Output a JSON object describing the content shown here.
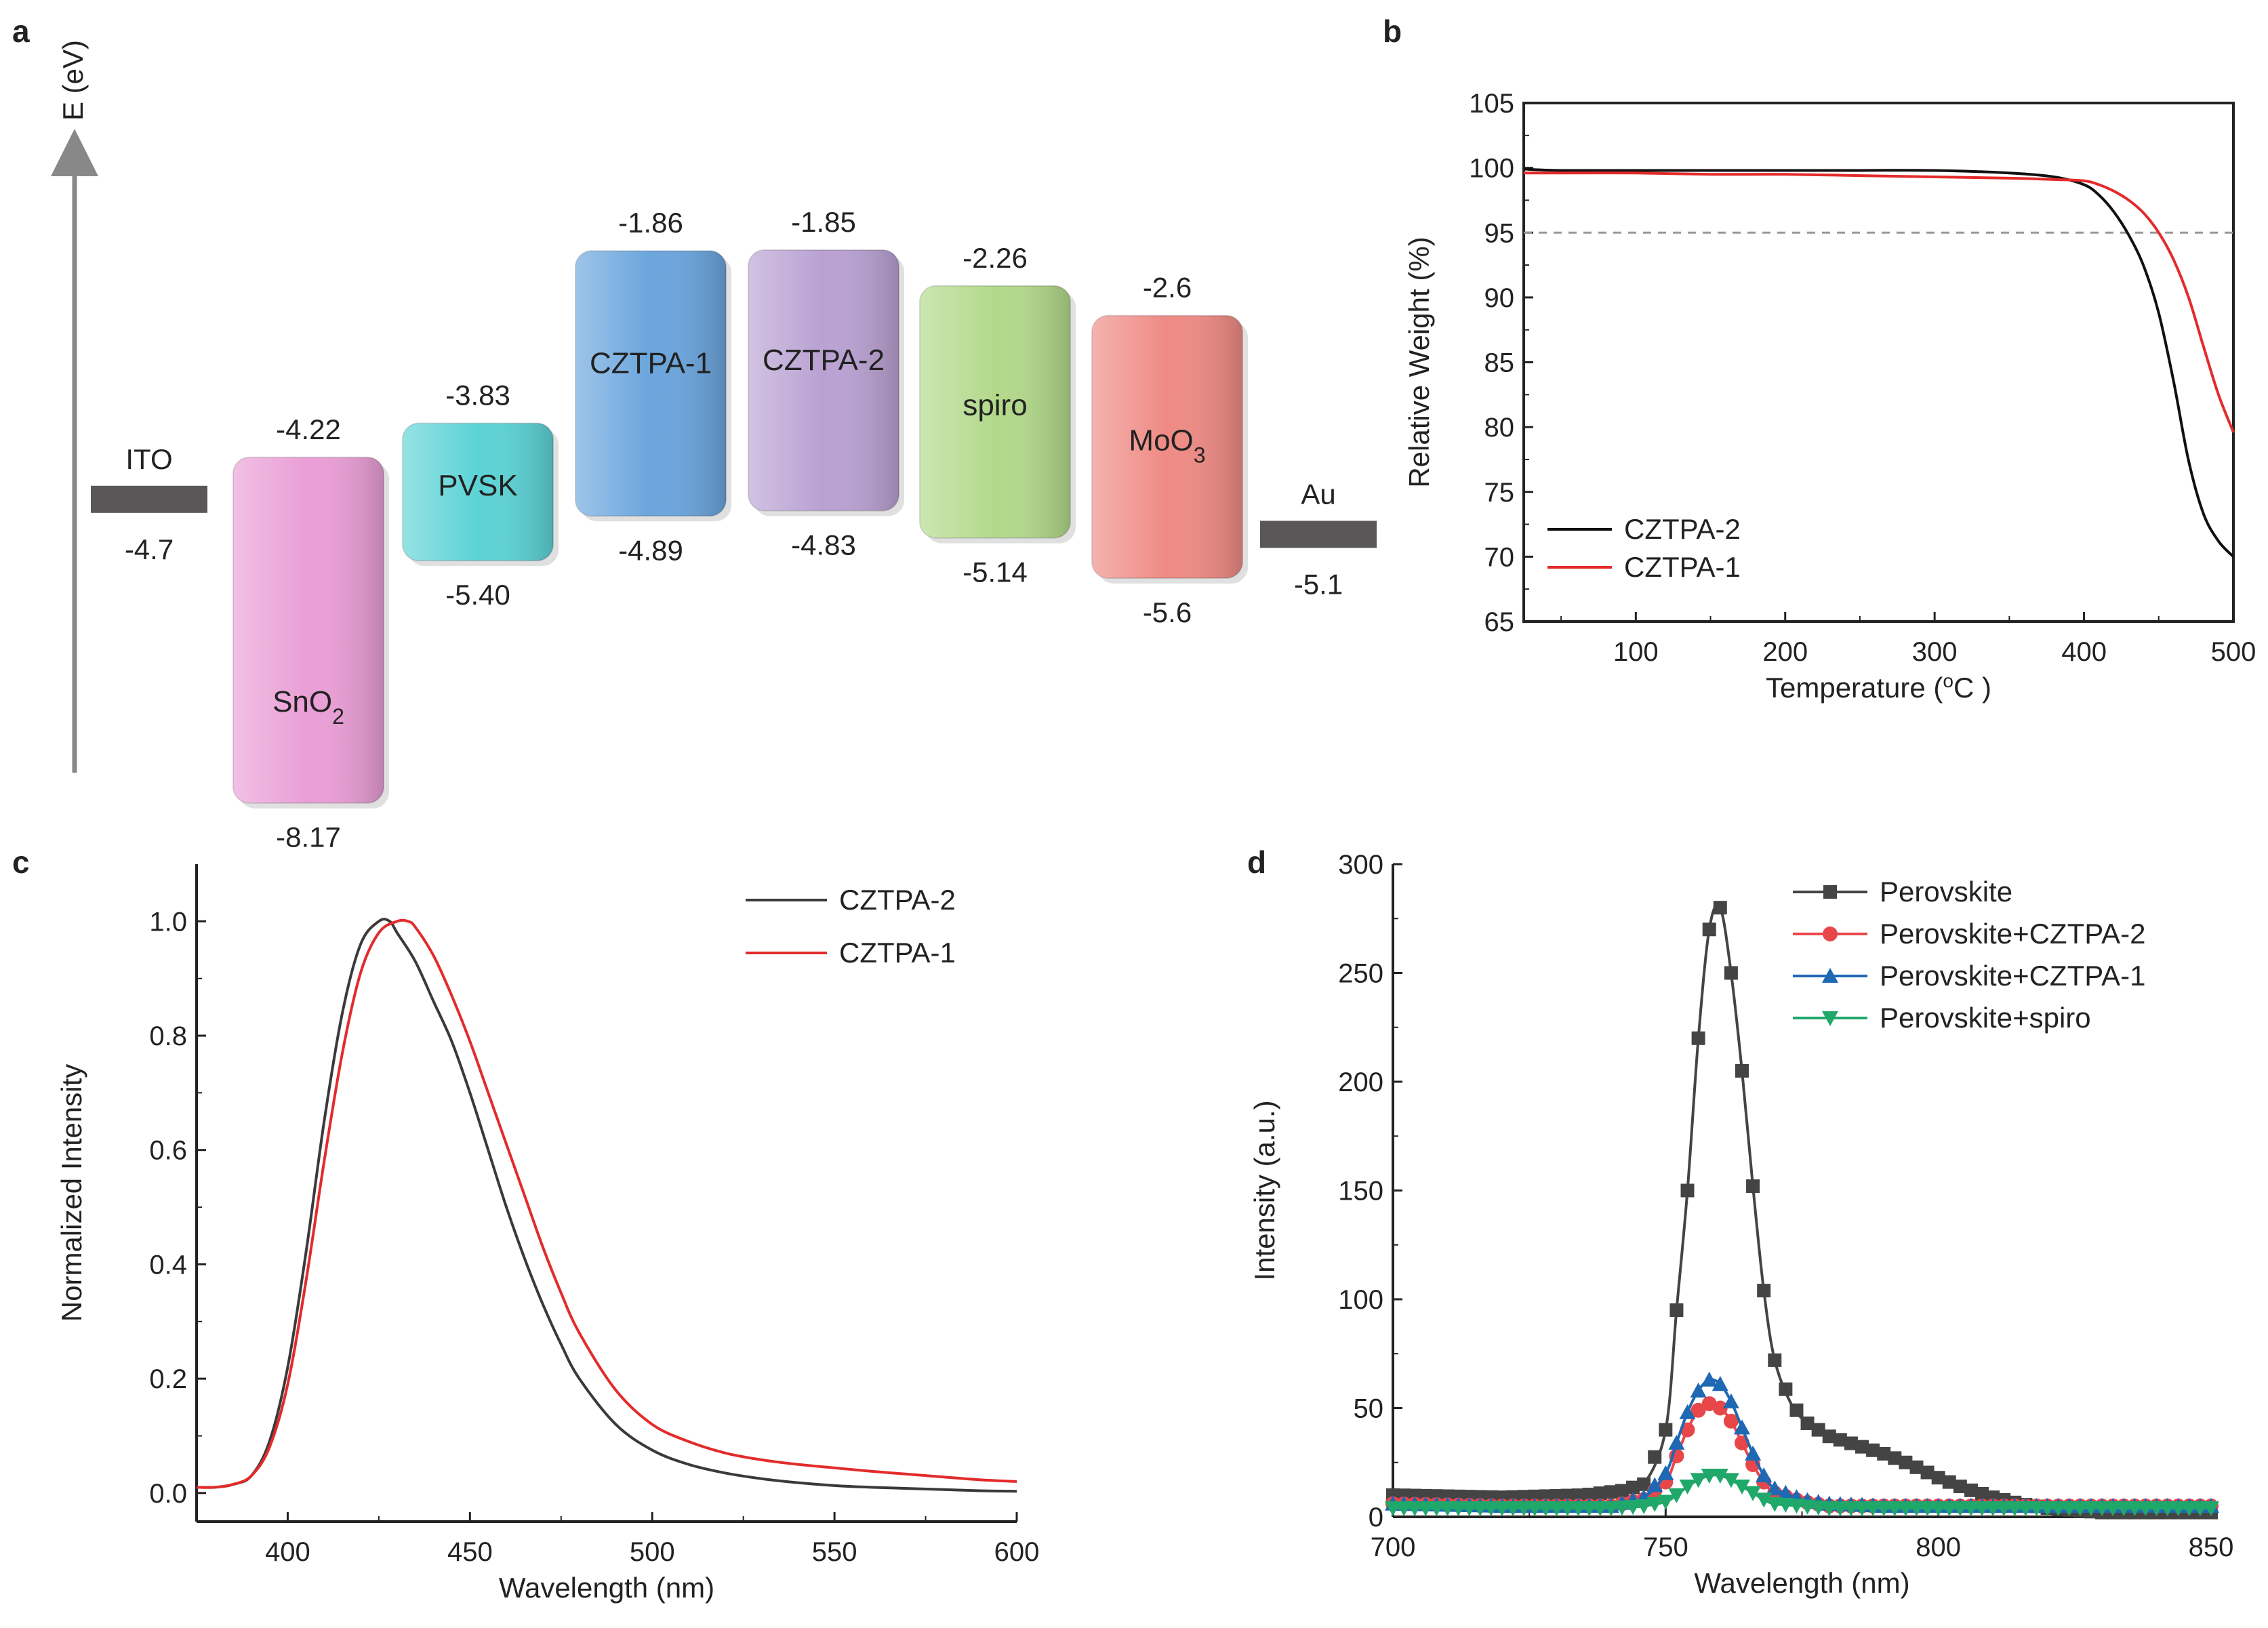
{
  "panel_labels": {
    "a": "a",
    "b": "b",
    "c": "c",
    "d": "d"
  },
  "chart_data": [
    {
      "panel": "a",
      "type": "diagram",
      "title": "Energy level diagram",
      "ylabel": "E (eV)",
      "levels": [
        {
          "name": "ITO",
          "kind": "electrode",
          "level": "-4.7",
          "level_value": -4.7,
          "color": "#595757"
        },
        {
          "name": "SnO",
          "sub": "2",
          "kind": "band",
          "top": "-4.22",
          "bottom": "-8.17",
          "top_value": -4.22,
          "bottom_value": -8.17,
          "color": "#ea9ed6"
        },
        {
          "name": "PVSK",
          "sub": "",
          "kind": "band",
          "top": "-3.83",
          "bottom": "-5.40",
          "top_value": -3.83,
          "bottom_value": -5.4,
          "color": "#5cd3d6"
        },
        {
          "name": "CZTPA-1",
          "sub": "",
          "kind": "band",
          "top": "-1.86",
          "bottom": "-4.89",
          "top_value": -1.86,
          "bottom_value": -4.89,
          "color": "#6aa5dd"
        },
        {
          "name": "CZTPA-2",
          "sub": "",
          "kind": "band",
          "top": "-1.85",
          "bottom": "-4.83",
          "top_value": -1.85,
          "bottom_value": -4.83,
          "color": "#b9a1d2"
        },
        {
          "name": "spiro",
          "sub": "",
          "kind": "band",
          "top": "-2.26",
          "bottom": "-5.14",
          "top_value": -2.26,
          "bottom_value": -5.14,
          "color": "#b2d98a"
        },
        {
          "name": "MoO",
          "sub": "3",
          "kind": "band",
          "top": "-2.6",
          "bottom": "-5.6",
          "top_value": -2.6,
          "bottom_value": -5.6,
          "color": "#ef8a84"
        },
        {
          "name": "Au",
          "kind": "electrode",
          "level": "-5.1",
          "level_value": -5.1,
          "color": "#595757"
        }
      ]
    },
    {
      "panel": "b",
      "type": "line",
      "xlabel": "Temperature (",
      "xlabel_sup": "o",
      "xlabel_end": "C )",
      "ylabel": "Relative Weight (%)",
      "xlim": [
        25,
        500
      ],
      "ylim": [
        65,
        105
      ],
      "xticks": [
        "100",
        "200",
        "300",
        "400",
        "500"
      ],
      "yticks": [
        "65",
        "70",
        "75",
        "80",
        "85",
        "90",
        "95",
        "100",
        "105"
      ],
      "reference_line": {
        "y": 95,
        "style": "dashed",
        "color": "#999999"
      },
      "legend": "lower-left",
      "series": [
        {
          "name": "CZTPA-2",
          "color": "#111111",
          "x": [
            25,
            50,
            100,
            150,
            200,
            250,
            300,
            350,
            380,
            400,
            410,
            420,
            430,
            440,
            450,
            460,
            470,
            480,
            490,
            500
          ],
          "y": [
            99.9,
            99.8,
            99.8,
            99.8,
            99.8,
            99.8,
            99.8,
            99.6,
            99.3,
            98.7,
            97.9,
            96.6,
            94.8,
            92.4,
            88.8,
            83.5,
            77.4,
            73.3,
            71.2,
            70.0
          ]
        },
        {
          "name": "CZTPA-1",
          "color": "#e32b2b",
          "x": [
            25,
            50,
            100,
            150,
            200,
            250,
            300,
            350,
            380,
            400,
            410,
            420,
            430,
            440,
            450,
            460,
            470,
            480,
            490,
            500
          ],
          "y": [
            99.6,
            99.6,
            99.6,
            99.5,
            99.5,
            99.4,
            99.3,
            99.2,
            99.1,
            99.0,
            98.7,
            98.2,
            97.5,
            96.5,
            95.0,
            92.9,
            90.0,
            86.2,
            82.5,
            79.6
          ]
        }
      ]
    },
    {
      "panel": "c",
      "type": "line",
      "xlabel": "Wavelength (nm)",
      "ylabel": "Normalized Intensity",
      "xlim": [
        375,
        600
      ],
      "ylim": [
        -0.05,
        1.1
      ],
      "xticks": [
        "400",
        "450",
        "500",
        "550",
        "600"
      ],
      "yticks": [
        "0.0",
        "0.2",
        "0.4",
        "0.6",
        "0.8",
        "1.0"
      ],
      "legend": "top-right",
      "series": [
        {
          "name": "CZTPA-2",
          "color": "#3a3a3a",
          "x": [
            375,
            380,
            385,
            390,
            395,
            400,
            405,
            410,
            415,
            420,
            425,
            428,
            430,
            435,
            440,
            445,
            450,
            455,
            460,
            465,
            470,
            475,
            480,
            490,
            500,
            510,
            520,
            530,
            540,
            550,
            560,
            570,
            580,
            590,
            600
          ],
          "y": [
            0.01,
            0.01,
            0.015,
            0.03,
            0.09,
            0.22,
            0.42,
            0.65,
            0.84,
            0.96,
            1.0,
            1.0,
            0.98,
            0.93,
            0.86,
            0.79,
            0.7,
            0.6,
            0.5,
            0.41,
            0.33,
            0.26,
            0.2,
            0.12,
            0.075,
            0.05,
            0.035,
            0.025,
            0.018,
            0.013,
            0.01,
            0.008,
            0.006,
            0.004,
            0.003
          ]
        },
        {
          "name": "CZTPA-1",
          "color": "#e32b2b",
          "x": [
            375,
            380,
            385,
            390,
            395,
            400,
            405,
            410,
            415,
            420,
            425,
            430,
            433,
            435,
            440,
            445,
            450,
            455,
            460,
            465,
            470,
            475,
            480,
            490,
            500,
            510,
            520,
            530,
            540,
            550,
            560,
            570,
            580,
            590,
            600
          ],
          "y": [
            0.01,
            0.01,
            0.015,
            0.03,
            0.08,
            0.19,
            0.37,
            0.58,
            0.77,
            0.91,
            0.98,
            1.0,
            1.0,
            0.99,
            0.94,
            0.87,
            0.79,
            0.7,
            0.61,
            0.52,
            0.43,
            0.35,
            0.28,
            0.18,
            0.12,
            0.09,
            0.07,
            0.058,
            0.05,
            0.044,
            0.038,
            0.033,
            0.028,
            0.023,
            0.02
          ]
        }
      ]
    },
    {
      "panel": "d",
      "type": "line",
      "xlabel": "Wavelength (nm)",
      "ylabel": "Intensity (a.u.)",
      "xlim": [
        700,
        850
      ],
      "ylim": [
        0,
        300
      ],
      "xticks": [
        "700",
        "750",
        "800",
        "850"
      ],
      "yticks": [
        "0",
        "50",
        "100",
        "150",
        "200",
        "250",
        "300"
      ],
      "legend": "top-right",
      "series": [
        {
          "name": "Perovskite",
          "color": "#444444",
          "marker": "square",
          "x": [
            700,
            720,
            735,
            742,
            746,
            750,
            752,
            754,
            756,
            758,
            760,
            762,
            764,
            766,
            768,
            770,
            773,
            776,
            780,
            785,
            790,
            795,
            800,
            805,
            810,
            815,
            820,
            825,
            830,
            840,
            850
          ],
          "y": [
            10,
            9,
            10,
            12,
            15,
            40,
            95,
            150,
            220,
            270,
            280,
            250,
            205,
            152,
            104,
            72,
            52,
            43,
            37,
            33,
            29,
            24,
            18,
            13,
            9,
            6,
            4,
            3,
            2,
            2,
            2
          ]
        },
        {
          "name": "Perovskite+CZTPA-2",
          "color": "#e8474a",
          "marker": "circle",
          "x": [
            700,
            720,
            740,
            746,
            750,
            752,
            754,
            756,
            758,
            760,
            762,
            764,
            766,
            768,
            770,
            775,
            780,
            790,
            800,
            820,
            850
          ],
          "y": [
            6,
            5,
            5,
            8,
            16,
            28,
            40,
            49,
            52,
            50,
            44,
            34,
            24,
            16,
            11,
            7,
            5,
            5,
            5,
            5,
            5
          ]
        },
        {
          "name": "Perovskite+CZTPA-1",
          "color": "#1f68b3",
          "marker": "triangle",
          "x": [
            700,
            720,
            740,
            746,
            750,
            752,
            754,
            756,
            758,
            760,
            762,
            764,
            766,
            768,
            770,
            775,
            780,
            790,
            800,
            820,
            850
          ],
          "y": [
            6,
            5,
            5,
            9,
            20,
            34,
            48,
            58,
            63,
            61,
            53,
            41,
            29,
            19,
            13,
            8,
            6,
            5,
            5,
            5,
            5
          ]
        },
        {
          "name": "Perovskite+spiro",
          "color": "#1fa86a",
          "marker": "triangle-down",
          "x": [
            700,
            720,
            740,
            746,
            750,
            752,
            754,
            756,
            758,
            760,
            762,
            764,
            766,
            768,
            770,
            775,
            780,
            790,
            800,
            820,
            850
          ],
          "y": [
            4,
            4,
            4,
            5,
            7,
            10,
            14,
            17,
            19,
            19,
            17,
            14,
            11,
            8,
            6,
            5,
            4,
            4,
            4,
            4,
            4
          ]
        }
      ]
    }
  ]
}
